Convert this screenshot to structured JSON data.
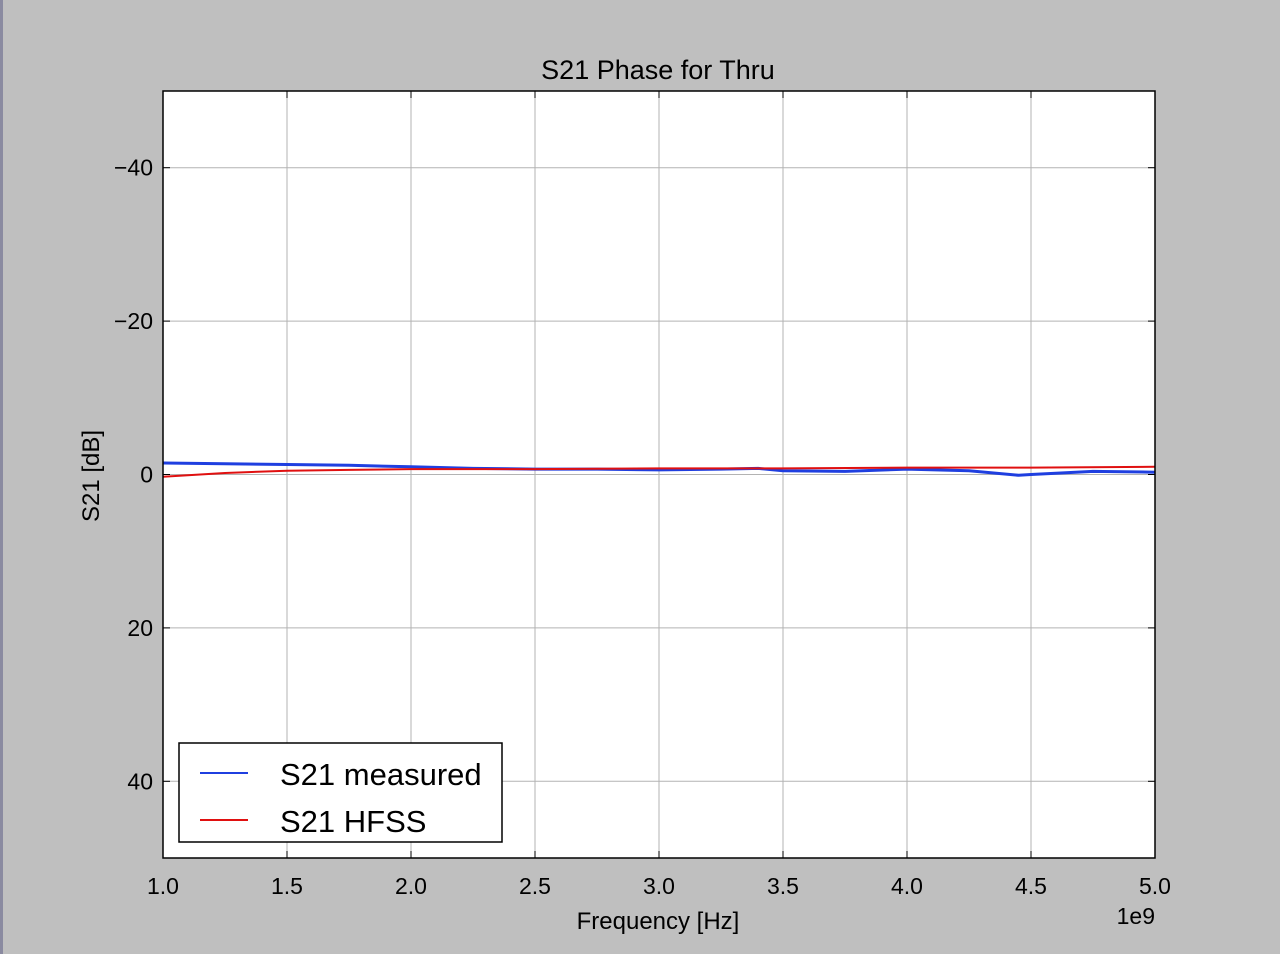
{
  "chart_data": {
    "type": "line",
    "title": "S21 Phase for Thru",
    "xlabel": "Frequency [Hz]",
    "ylabel": "S21 [dB]",
    "x_offset_label": "1e9",
    "xlim": [
      1000000000.0,
      5000000000.0
    ],
    "ylim": [
      50,
      -50
    ],
    "y_inverted": true,
    "grid": true,
    "legend_position": "lower-left",
    "x_ticks": [
      1000000000.0,
      1500000000.0,
      2000000000.0,
      2500000000.0,
      3000000000.0,
      3500000000.0,
      4000000000.0,
      4500000000.0,
      5000000000.0
    ],
    "x_tick_labels": [
      "1.0",
      "1.5",
      "2.0",
      "2.5",
      "3.0",
      "3.5",
      "4.0",
      "4.5",
      "5.0"
    ],
    "y_ticks": [
      -40,
      -20,
      0,
      20,
      40
    ],
    "y_tick_labels": [
      "−40",
      "−20",
      "0",
      "20",
      "40"
    ],
    "series": [
      {
        "name": "S21 measured",
        "color": "#1f3fe0",
        "x": [
          1000000000.0,
          1250000000.0,
          1500000000.0,
          1750000000.0,
          2000000000.0,
          2250000000.0,
          2500000000.0,
          2750000000.0,
          3000000000.0,
          3250000000.0,
          3400000000.0,
          3500000000.0,
          3750000000.0,
          4000000000.0,
          4250000000.0,
          4450000000.0,
          4500000000.0,
          4750000000.0,
          5000000000.0
        ],
        "y": [
          -1.5,
          -1.4,
          -1.3,
          -1.2,
          -1.0,
          -0.8,
          -0.7,
          -0.7,
          -0.6,
          -0.7,
          -0.8,
          -0.5,
          -0.4,
          -0.7,
          -0.5,
          0.1,
          0.0,
          -0.4,
          -0.3
        ]
      },
      {
        "name": "S21 HFSS",
        "color": "#e01010",
        "x": [
          1000000000.0,
          1250000000.0,
          1500000000.0,
          1750000000.0,
          2000000000.0,
          2500000000.0,
          3000000000.0,
          3500000000.0,
          4000000000.0,
          4500000000.0,
          5000000000.0
        ],
        "y": [
          0.3,
          -0.2,
          -0.5,
          -0.6,
          -0.7,
          -0.7,
          -0.8,
          -0.8,
          -0.9,
          -0.9,
          -1.0
        ]
      }
    ]
  }
}
